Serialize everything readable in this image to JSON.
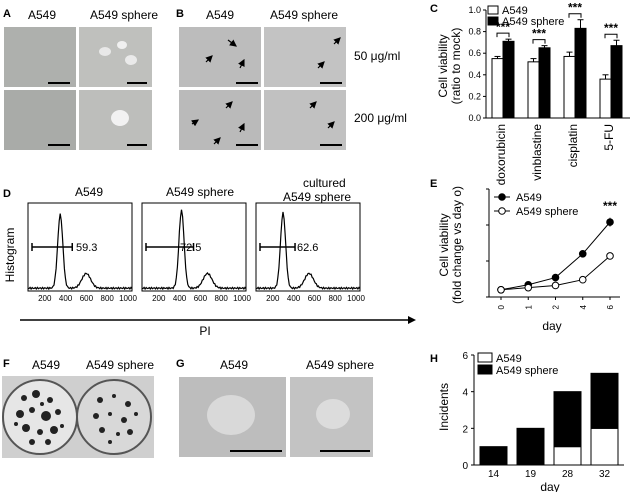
{
  "panels": {
    "A": {
      "letter": "A",
      "col1": "A549",
      "col2": "A549 sphere"
    },
    "B": {
      "letter": "B",
      "col1": "A549",
      "col2": "A549 sphere",
      "row1": "50 μg/ml",
      "row2": "200 μg/ml"
    },
    "C": {
      "letter": "C"
    },
    "D": {
      "letter": "D",
      "ylabel": "Histogram",
      "xlabel": "PI",
      "titles": [
        "A549",
        "A549 sphere",
        "cultured",
        "A549 sphere"
      ],
      "values": [
        "59.3",
        "72.5",
        "62.6"
      ],
      "ticks": [
        "200",
        "400",
        "600",
        "800",
        "1000"
      ]
    },
    "E": {
      "letter": "E"
    },
    "F": {
      "letter": "F",
      "col1": "A549",
      "col2": "A549 sphere"
    },
    "G": {
      "letter": "G",
      "col1": "A549",
      "col2": "A549 sphere"
    },
    "H": {
      "letter": "H"
    }
  },
  "chart_data": [
    {
      "panel": "C",
      "type": "bar",
      "categories": [
        "doxorubicin",
        "vinblastine",
        "cisplatin",
        "5-FU"
      ],
      "series": [
        {
          "name": "A549",
          "values": [
            0.55,
            0.52,
            0.57,
            0.36
          ],
          "errors": [
            0.02,
            0.03,
            0.04,
            0.04
          ],
          "color": "#ffffff"
        },
        {
          "name": "A549 sphere",
          "values": [
            0.71,
            0.65,
            0.83,
            0.67
          ],
          "errors": [
            0.02,
            0.02,
            0.08,
            0.05
          ],
          "color": "#000000"
        }
      ],
      "significance": [
        "***",
        "***",
        "***",
        "***"
      ],
      "ylabel": "Cell viability\n(ratio to mock)",
      "ylim": [
        0.0,
        1.0
      ],
      "yticks": [
        "0.0",
        "0.2",
        "0.4",
        "0.6",
        "0.8",
        "1.0"
      ],
      "legend": "top-left"
    },
    {
      "panel": "E",
      "type": "line",
      "x": [
        "0",
        "1",
        "2",
        "4",
        "6"
      ],
      "series": [
        {
          "name": "A549",
          "values": [
            1.0,
            1.7,
            2.7,
            6.0,
            10.4
          ],
          "errors": [
            0.1,
            0.2,
            0.2,
            0.3,
            0.6
          ],
          "marker": "filled-circle"
        },
        {
          "name": "A549 sphere",
          "values": [
            1.0,
            1.3,
            1.6,
            2.4,
            5.7
          ],
          "errors": [
            0.1,
            0.1,
            0.2,
            0.2,
            0.3
          ],
          "marker": "open-circle"
        }
      ],
      "significance_label": "***",
      "xlabel": "day",
      "ylabel": "Cell viability\n(fold change vs day o)",
      "ylim": [
        0,
        12
      ],
      "yticks": [
        "0",
        "5",
        "10",
        "15"
      ],
      "legend": "top-left"
    },
    {
      "panel": "H",
      "type": "bar",
      "stacked": true,
      "categories": [
        "14",
        "19",
        "28",
        "32"
      ],
      "series": [
        {
          "name": "A549",
          "values": [
            0,
            0,
            1,
            2
          ],
          "color": "#ffffff"
        },
        {
          "name": "A549 sphere",
          "values": [
            1,
            2,
            3,
            3
          ],
          "color": "#000000"
        }
      ],
      "xlabel": "day",
      "ylabel": "Incidents",
      "ylim": [
        0,
        6
      ],
      "yticks": [
        "0",
        "2",
        "4",
        "6"
      ],
      "legend": "top-left"
    }
  ]
}
